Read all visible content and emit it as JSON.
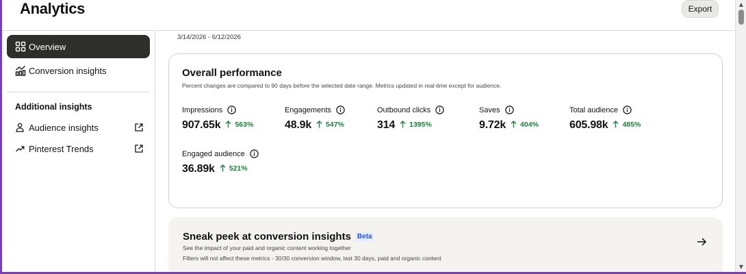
{
  "header": {
    "title": "Analytics",
    "export_label": "Export"
  },
  "sidebar": {
    "nav": [
      {
        "label": "Overview",
        "icon": "grid-icon",
        "active": true
      },
      {
        "label": "Conversion insights",
        "icon": "conversion-chart-icon",
        "active": false
      }
    ],
    "section_title": "Additional insights",
    "links": [
      {
        "label": "Audience insights",
        "icon": "person-icon",
        "external": "external-link-icon"
      },
      {
        "label": "Pinterest Trends",
        "icon": "trend-arrow-icon",
        "external": "external-link-icon"
      }
    ]
  },
  "main": {
    "date_range": "3/14/2026 - 6/12/2026",
    "performance": {
      "title": "Overall performance",
      "subtitle": "Percent changes are compared to 90 days before the selected date range. Metrics updated in real-time except for audience.",
      "metrics": [
        {
          "label": "Impressions",
          "value": "907.65k",
          "change": "563%"
        },
        {
          "label": "Engagements",
          "value": "48.9k",
          "change": "547%"
        },
        {
          "label": "Outbound clicks",
          "value": "314",
          "change": "1395%"
        },
        {
          "label": "Saves",
          "value": "9.72k",
          "change": "404%"
        },
        {
          "label": "Total audience",
          "value": "605.98k",
          "change": "485%"
        },
        {
          "label": "Engaged audience",
          "value": "36.89k",
          "change": "521%"
        }
      ]
    },
    "conversion_peek": {
      "title": "Sneak peek at conversion insights",
      "badge": "Beta",
      "line1": "See the impact of your paid and organic content working together",
      "line2": "Filters will not affect these metrics - 30/30 conversion window, last 30 days, paid and organic content"
    }
  },
  "colors": {
    "accent_green": "#1a7f3a",
    "active_nav": "#2e2e2a",
    "beta_blue": "#2152d8",
    "frame": "#7a3fb8"
  }
}
